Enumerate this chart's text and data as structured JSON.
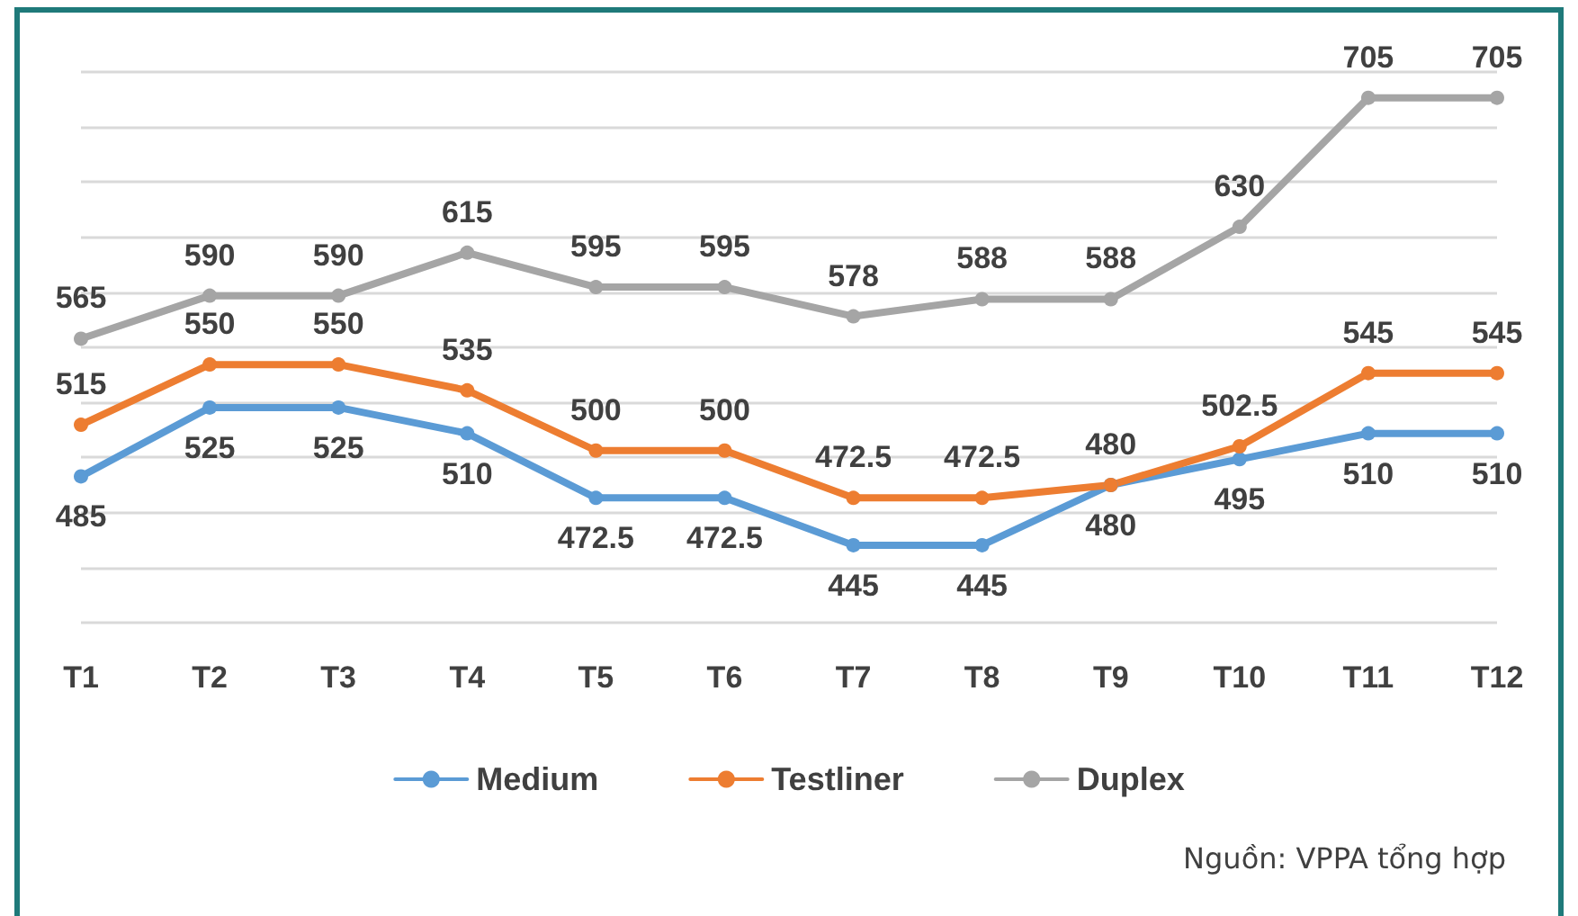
{
  "chart_data": {
    "type": "line",
    "categories": [
      "T1",
      "T2",
      "T3",
      "T4",
      "T5",
      "T6",
      "T7",
      "T8",
      "T9",
      "T10",
      "T11",
      "T12"
    ],
    "series": [
      {
        "name": "Medium",
        "color": "#5b9bd5",
        "values": [
          485,
          525,
          525,
          510,
          472.5,
          472.5,
          445,
          445,
          480,
          495,
          510,
          510
        ]
      },
      {
        "name": "Testliner",
        "color": "#ed7d31",
        "values": [
          515,
          550,
          550,
          535,
          500,
          500,
          472.5,
          472.5,
          480,
          502.5,
          545,
          545
        ]
      },
      {
        "name": "Duplex",
        "color": "#a5a5a5",
        "values": [
          565,
          590,
          590,
          615,
          595,
          595,
          578,
          588,
          588,
          630,
          705,
          705
        ]
      }
    ],
    "ylim": [
      400,
      720
    ],
    "yticks": [
      {
        "value": 400,
        "label": null
      },
      {
        "value": 432,
        "label": null
      },
      {
        "value": 464,
        "label": null
      },
      {
        "value": 496,
        "label": null
      },
      {
        "value": 528,
        "label": null
      },
      {
        "value": 560,
        "label": null
      },
      {
        "value": 592,
        "label": null
      },
      {
        "value": 624,
        "label": null
      },
      {
        "value": 656,
        "label": null
      },
      {
        "value": 688,
        "label": null
      },
      {
        "value": 720,
        "label": null
      }
    ],
    "tick_labels": "x",
    "grid": "y",
    "legend": "bottom",
    "marker": "circle",
    "line_style": "solid",
    "data_labels": true,
    "annotations": [
      "Nguồn: VPPA tổng hợp"
    ]
  }
}
